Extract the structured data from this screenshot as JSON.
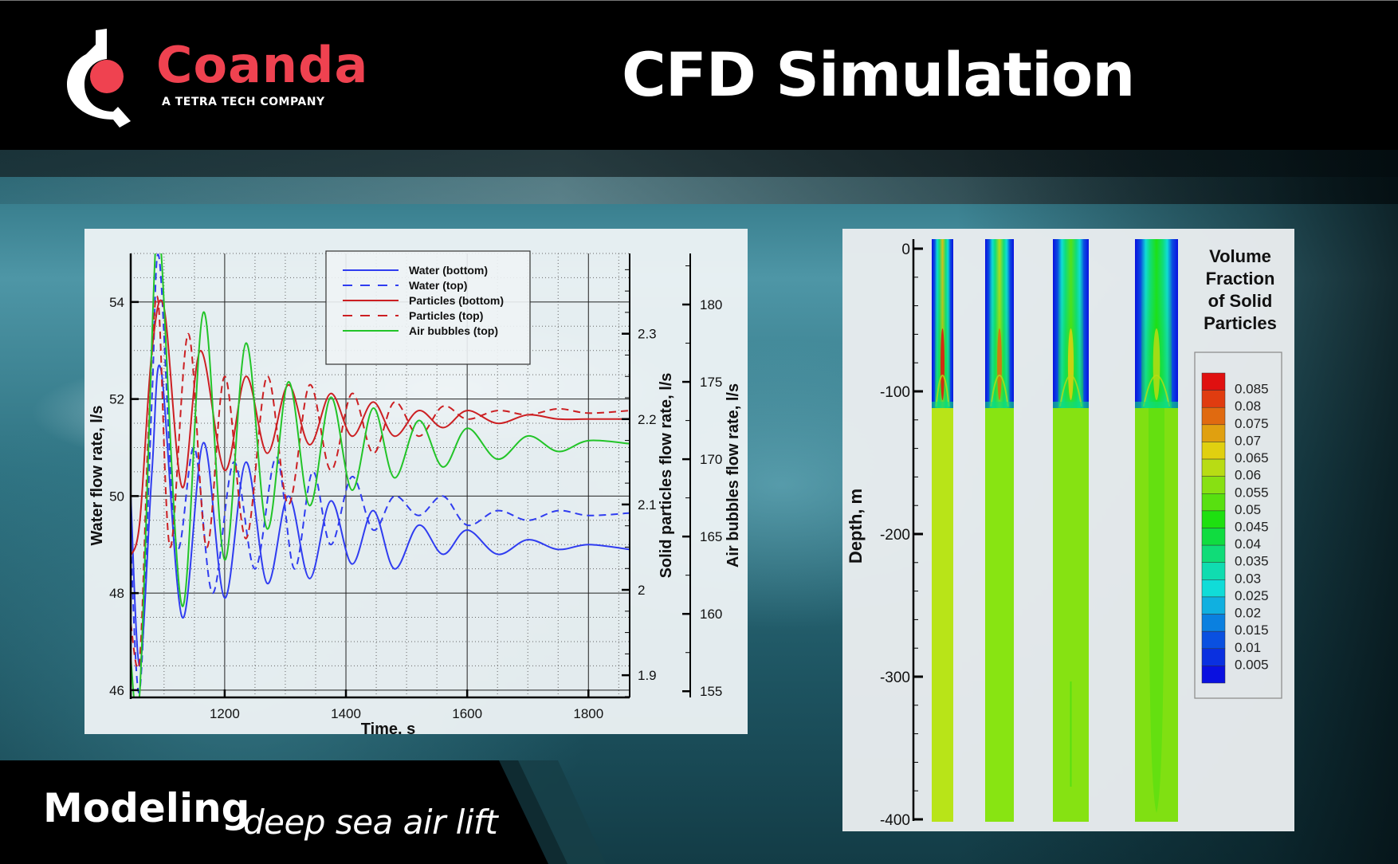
{
  "header": {
    "brand_name": "Coanda",
    "brand_tagline": "A TETRA TECH COMPANY",
    "title": "CFD Simulation",
    "brand_color": "#ef4250"
  },
  "banner": {
    "main": "Modeling",
    "sub": "deep sea air lift"
  },
  "chart_data": [
    {
      "type": "line",
      "title": "",
      "xlabel": "Time, s",
      "ylabel": "Water flow rate, l/s",
      "y2label": "Solid particles flow rate, l/s",
      "y3label": "Air bubbles flow rate, l/s",
      "xlim": [
        1045,
        1868
      ],
      "ylim": [
        45.85,
        55.0
      ],
      "y2lim": [
        1.874,
        2.394
      ],
      "y3lim": [
        154.6,
        183.3
      ],
      "xticks": [
        1200,
        1400,
        1600,
        1800
      ],
      "yticks": [
        46,
        48,
        50,
        52,
        54
      ],
      "y2ticks": [
        1.9,
        2,
        2.1,
        2.2,
        2.3
      ],
      "y3ticks": [
        155,
        160,
        165,
        170,
        175,
        180
      ],
      "grid": true,
      "legend_position": "top-center",
      "series": [
        {
          "name": "Water (bottom)",
          "color": "#2f3cf0",
          "dash": false,
          "axis": "y",
          "x": [
            1045,
            1060,
            1080,
            1095,
            1130,
            1165,
            1200,
            1235,
            1270,
            1305,
            1340,
            1375,
            1410,
            1445,
            1480,
            1520,
            1560,
            1600,
            1650,
            1700,
            1750,
            1800,
            1868
          ],
          "values": [
            50.0,
            46.5,
            50.5,
            52.6,
            47.5,
            51.1,
            47.9,
            50.7,
            48.2,
            50.0,
            48.3,
            49.9,
            48.6,
            49.7,
            48.5,
            49.4,
            48.8,
            49.3,
            48.8,
            49.1,
            48.9,
            49.0,
            48.9
          ]
        },
        {
          "name": "Water (top)",
          "color": "#2f3cf0",
          "dash": true,
          "axis": "y",
          "x": [
            1045,
            1060,
            1080,
            1092,
            1120,
            1150,
            1180,
            1215,
            1250,
            1285,
            1315,
            1345,
            1375,
            1410,
            1445,
            1480,
            1520,
            1560,
            1600,
            1650,
            1700,
            1750,
            1800,
            1868
          ],
          "values": [
            49.0,
            46.0,
            52.0,
            54.9,
            49.0,
            51.0,
            48.0,
            50.7,
            48.5,
            50.8,
            48.5,
            50.5,
            49.0,
            50.4,
            49.3,
            50.0,
            49.6,
            50.0,
            49.4,
            49.7,
            49.5,
            49.7,
            49.6,
            49.65
          ]
        },
        {
          "name": "Particles (bottom)",
          "color": "#cc1f22",
          "dash": false,
          "axis": "y2",
          "x": [
            1045,
            1060,
            1080,
            1100,
            1130,
            1160,
            1200,
            1235,
            1270,
            1305,
            1340,
            1375,
            1410,
            1445,
            1480,
            1520,
            1560,
            1600,
            1650,
            1700,
            1750,
            1800,
            1868
          ],
          "values": [
            2.04,
            2.08,
            2.28,
            2.33,
            2.12,
            2.28,
            2.14,
            2.25,
            2.16,
            2.24,
            2.17,
            2.23,
            2.18,
            2.22,
            2.18,
            2.21,
            2.19,
            2.21,
            2.195,
            2.205,
            2.2,
            2.2,
            2.2
          ]
        },
        {
          "name": "Particles (top)",
          "color": "#cc1f22",
          "dash": true,
          "axis": "y2",
          "x": [
            1045,
            1060,
            1075,
            1090,
            1110,
            1140,
            1170,
            1200,
            1235,
            1270,
            1305,
            1340,
            1375,
            1410,
            1445,
            1480,
            1520,
            1560,
            1600,
            1650,
            1700,
            1750,
            1800,
            1868
          ],
          "values": [
            1.96,
            1.92,
            2.2,
            2.34,
            2.05,
            2.3,
            2.05,
            2.25,
            2.06,
            2.25,
            2.1,
            2.24,
            2.14,
            2.23,
            2.16,
            2.22,
            2.18,
            2.215,
            2.2,
            2.21,
            2.205,
            2.212,
            2.207,
            2.21
          ]
        },
        {
          "name": "Air bubbles (top)",
          "color": "#22c428",
          "dash": false,
          "axis": "y3",
          "x": [
            1045,
            1060,
            1085,
            1095,
            1130,
            1165,
            1200,
            1235,
            1270,
            1305,
            1340,
            1375,
            1410,
            1445,
            1480,
            1520,
            1560,
            1600,
            1650,
            1700,
            1750,
            1800,
            1868
          ],
          "values": [
            157,
            155,
            183,
            183.5,
            160.5,
            179.5,
            163.5,
            177.5,
            165.5,
            175.0,
            167.0,
            174.0,
            168.0,
            173.3,
            168.8,
            172.5,
            169.5,
            172.0,
            170.0,
            171.5,
            170.5,
            171.2,
            171.0
          ]
        }
      ]
    },
    {
      "type": "heatmap",
      "title": "Volume Fraction of Solid Particles",
      "ylabel": "Depth, m",
      "ylim": [
        -400,
        0
      ],
      "yticks": [
        0,
        -100,
        -200,
        -300,
        -400
      ],
      "columns": 4,
      "colorbar": {
        "levels": [
          0.085,
          0.08,
          0.075,
          0.07,
          0.065,
          0.06,
          0.055,
          0.05,
          0.045,
          0.04,
          0.035,
          0.03,
          0.025,
          0.02,
          0.015,
          0.01,
          0.005
        ],
        "colors": [
          "#e01010",
          "#e03c10",
          "#e06a10",
          "#e0a010",
          "#e0d010",
          "#b8dc14",
          "#88e012",
          "#58e010",
          "#1ee010",
          "#10dc40",
          "#10dc78",
          "#10dcb0",
          "#10dcd8",
          "#10b0e0",
          "#0a80e0",
          "#0a50e0",
          "#0a30e0",
          "#0a10e0"
        ]
      },
      "lower_section_colors": [
        "#b8e418",
        "#88e412",
        "#86e212",
        "#80e012"
      ]
    }
  ]
}
